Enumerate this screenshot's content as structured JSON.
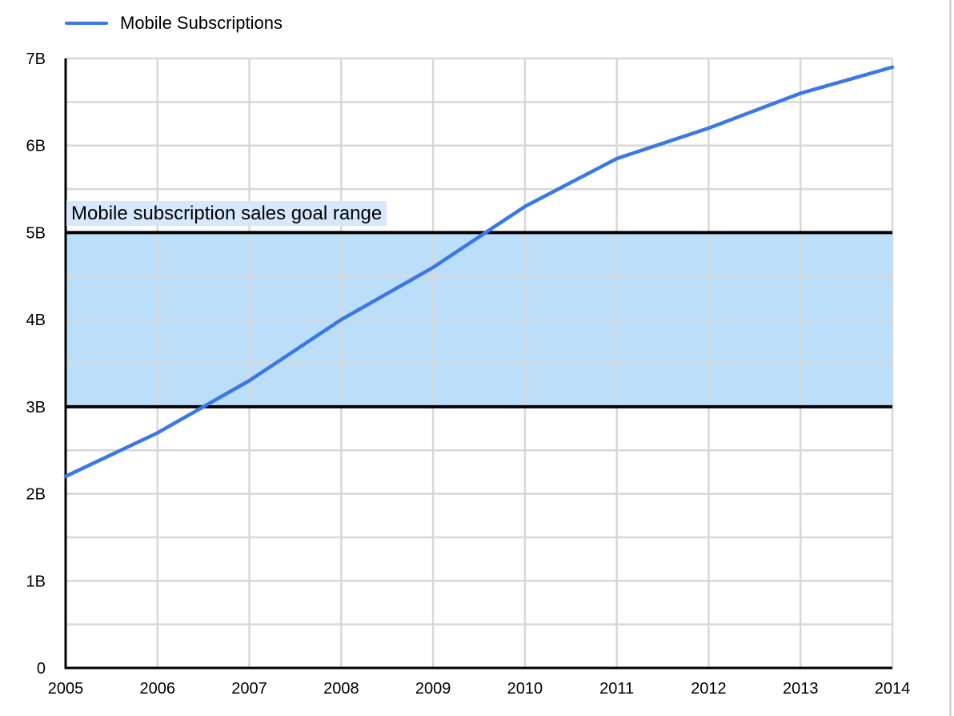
{
  "page": {
    "background": "#FFFFFF",
    "right_edge_line_color": "#D6D6D6"
  },
  "legend": {
    "label": "Mobile Subscriptions"
  },
  "chart_data": {
    "type": "line",
    "title": "",
    "legend_position": "top-left",
    "x": [
      2005,
      2006,
      2007,
      2008,
      2009,
      2010,
      2011,
      2012,
      2013,
      2014
    ],
    "x_ticks": [
      "2005",
      "2006",
      "2007",
      "2008",
      "2009",
      "2010",
      "2011",
      "2012",
      "2013",
      "2014"
    ],
    "series": [
      {
        "name": "Mobile Subscriptions",
        "color": "#3B78E7",
        "values": [
          2.2,
          2.7,
          3.3,
          4.0,
          4.6,
          5.3,
          5.85,
          6.2,
          6.6,
          6.9
        ]
      }
    ],
    "band": {
      "label": "Mobile subscription sales goal range",
      "from": 3,
      "to": 5,
      "fill": "#BBDEFB",
      "border_color": "#000000",
      "label_bg": "#D7E7FC"
    },
    "y_ticks": [
      {
        "value": 0,
        "label": "0"
      },
      {
        "value": 1,
        "label": "1B"
      },
      {
        "value": 2,
        "label": "2B"
      },
      {
        "value": 3,
        "label": "3B"
      },
      {
        "value": 4,
        "label": "4B"
      },
      {
        "value": 5,
        "label": "5B"
      },
      {
        "value": 6,
        "label": "6B"
      },
      {
        "value": 7,
        "label": "7B"
      }
    ],
    "ylim": [
      0,
      7
    ],
    "xlim": [
      2005,
      2014
    ],
    "grid": {
      "color": "#D8D8D8",
      "minor_step_y": 0.5,
      "vertical_per_year": true
    },
    "axis_color": "#000000",
    "text_color": "#000000"
  }
}
